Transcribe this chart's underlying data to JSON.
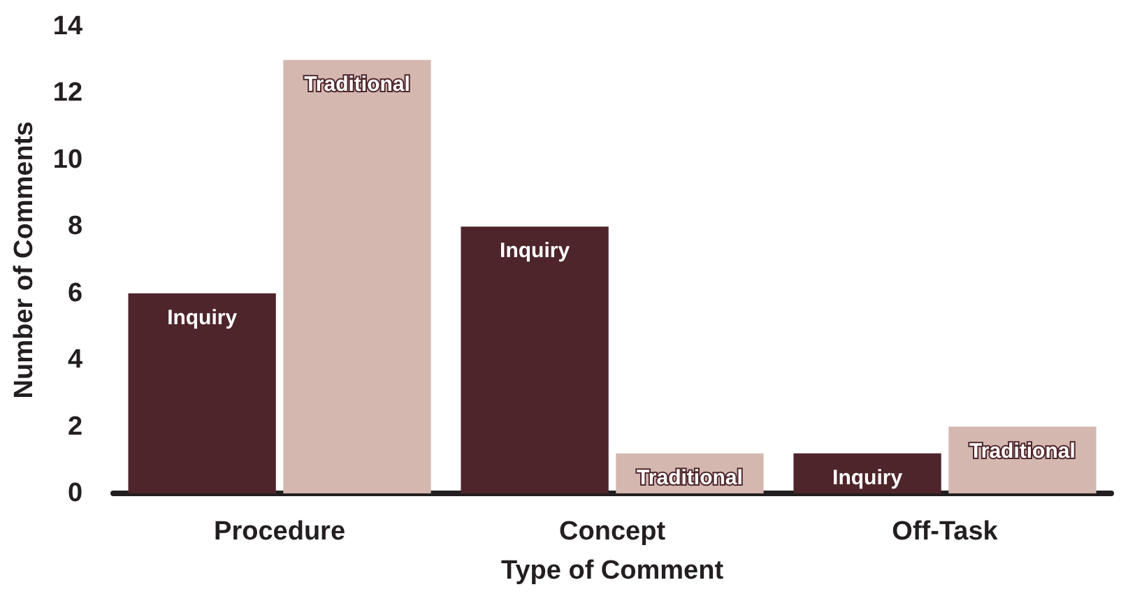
{
  "chart_data": {
    "type": "bar",
    "xlabel": "Type of Comment",
    "ylabel": "Number of Comments",
    "categories": [
      "Procedure",
      "Concept",
      "Off-Task"
    ],
    "series": [
      {
        "name": "Inquiry",
        "color": "#4e252b",
        "values": [
          6,
          8,
          1.2
        ]
      },
      {
        "name": "Traditional",
        "color": "#d4b8b0",
        "values": [
          13,
          1.2,
          2
        ]
      }
    ],
    "ylim": [
      0,
      14
    ],
    "yticks": [
      0,
      2,
      4,
      6,
      8,
      10,
      12,
      14
    ],
    "grid": false,
    "legend": false
  }
}
